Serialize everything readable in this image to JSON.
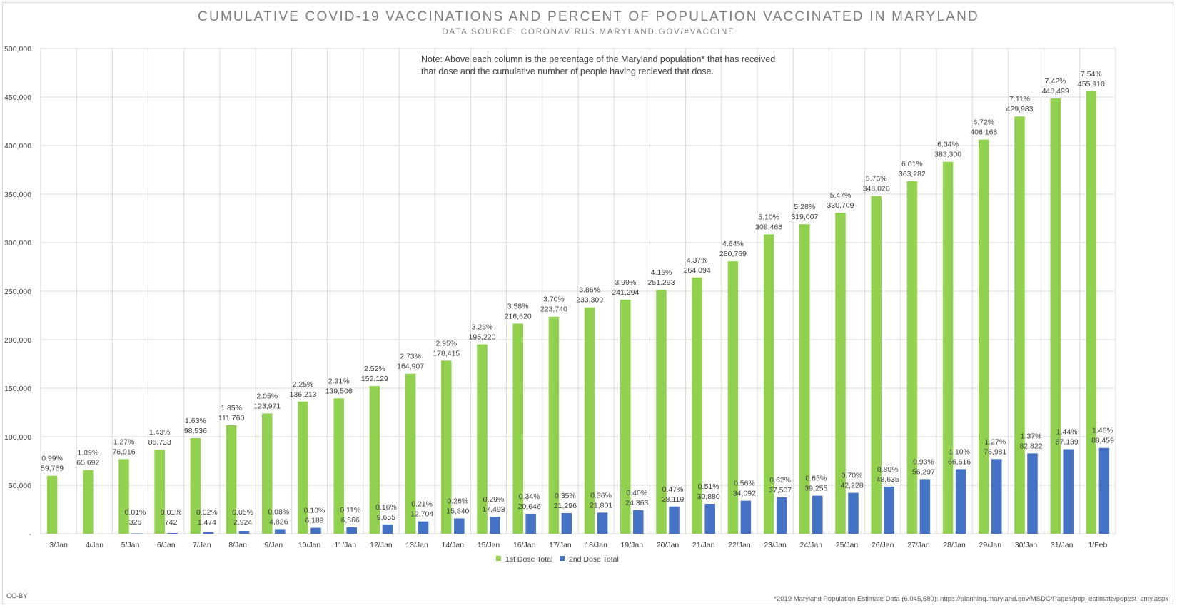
{
  "title": "CUMULATIVE COVID-19 VACCINATIONS AND PERCENT OF POPULATION VACCINATED IN MARYLAND",
  "subtitle": "DATA SOURCE: CORONAVIRUS.MARYLAND.GOV/#VACCINE",
  "note": "Note: Above each column is the percentage of the Maryland population* that has received that dose and the cumulative number of people having recieved that dose.",
  "footer_left": "CC-BY",
  "footer_right": "*2019 Maryland Population Estimate Data (6,045,680): https://planning.maryland.gov/MSDC/Pages/pop_estimate/popest_cnty.aspx",
  "colors": {
    "series1": "#92d050",
    "series2": "#4472c4",
    "grid": "#d9d9d9",
    "text": "#404040"
  },
  "chart_data": {
    "type": "bar",
    "categories": [
      "3/Jan",
      "4/Jan",
      "5/Jan",
      "6/Jan",
      "7/Jan",
      "8/Jan",
      "9/Jan",
      "10/Jan",
      "11/Jan",
      "12/Jan",
      "13/Jan",
      "14/Jan",
      "15/Jan",
      "16/Jan",
      "17/Jan",
      "18/Jan",
      "19/Jan",
      "20/Jan",
      "21/Jan",
      "22/Jan",
      "23/Jan",
      "24/Jan",
      "25/Jan",
      "26/Jan",
      "27/Jan",
      "28/Jan",
      "29/Jan",
      "30/Jan",
      "31/Jan",
      "1/Feb"
    ],
    "ylim": [
      0,
      500000
    ],
    "yticks": [
      0,
      50000,
      100000,
      150000,
      200000,
      250000,
      300000,
      350000,
      400000,
      450000,
      500000
    ],
    "ytick_labels": [
      "-",
      "50,000",
      "100,000",
      "150,000",
      "200,000",
      "250,000",
      "300,000",
      "350,000",
      "400,000",
      "450,000",
      "500,000"
    ],
    "grid": true,
    "legend": "bottom",
    "series": [
      {
        "name": "1st Dose Total",
        "values": [
          59769,
          65692,
          76916,
          86733,
          98536,
          111760,
          123971,
          136213,
          139506,
          152129,
          164907,
          178415,
          195220,
          216620,
          223740,
          233309,
          241294,
          251293,
          264094,
          280769,
          308466,
          319007,
          330709,
          348026,
          363282,
          383300,
          406168,
          429983,
          448499,
          455910
        ],
        "value_labels": [
          "59,769",
          "65,692",
          "76,916",
          "86,733",
          "98,536",
          "111,760",
          "123,971",
          "136,213",
          "139,506",
          "152,129",
          "164,907",
          "178,415",
          "195,220",
          "216,620",
          "223,740",
          "233,309",
          "241,294",
          "251,293",
          "264,094",
          "280,769",
          "308,466",
          "319,007",
          "330,709",
          "348,026",
          "363,282",
          "383,300",
          "406,168",
          "429,983",
          "448,499",
          "455,910"
        ],
        "percent_labels": [
          "0.99%",
          "1.09%",
          "1.27%",
          "1.43%",
          "1.63%",
          "1.85%",
          "2.05%",
          "2.25%",
          "2.31%",
          "2.52%",
          "2.73%",
          "2.95%",
          "3.23%",
          "3.58%",
          "3.70%",
          "3.86%",
          "3.99%",
          "4.16%",
          "4.37%",
          "4.64%",
          "5.10%",
          "5.28%",
          "5.47%",
          "5.76%",
          "6.01%",
          "6.34%",
          "6.72%",
          "7.11%",
          "7.42%",
          "7.54%"
        ]
      },
      {
        "name": "2nd Dose Total",
        "values": [
          null,
          null,
          326,
          742,
          1474,
          2924,
          4826,
          6189,
          6666,
          9655,
          12704,
          15840,
          17493,
          20646,
          21296,
          21801,
          24363,
          28119,
          30880,
          34092,
          37507,
          39255,
          42228,
          48635,
          56297,
          66616,
          76981,
          82822,
          87139,
          88459
        ],
        "value_labels": [
          "",
          "",
          "326",
          "742",
          "1,474",
          "2,924",
          "4,826",
          "6,189",
          "6,666",
          "9,655",
          "12,704",
          "15,840",
          "17,493",
          "20,646",
          "21,296",
          "21,801",
          "24,363",
          "28,119",
          "30,880",
          "34,092",
          "37,507",
          "39,255",
          "42,228",
          "48,635",
          "56,297",
          "66,616",
          "76,981",
          "82,822",
          "87,139",
          "88,459"
        ],
        "percent_labels": [
          "",
          "",
          "0.01%",
          "0.01%",
          "0.02%",
          "0.05%",
          "0.08%",
          "0.10%",
          "0.11%",
          "0.16%",
          "0.21%",
          "0.26%",
          "0.29%",
          "0.34%",
          "0.35%",
          "0.36%",
          "0.40%",
          "0.47%",
          "0.51%",
          "0.56%",
          "0.62%",
          "0.65%",
          "0.70%",
          "0.80%",
          "0.93%",
          "1.10%",
          "1.27%",
          "1.37%",
          "1.44%",
          "1.46%"
        ]
      }
    ]
  }
}
